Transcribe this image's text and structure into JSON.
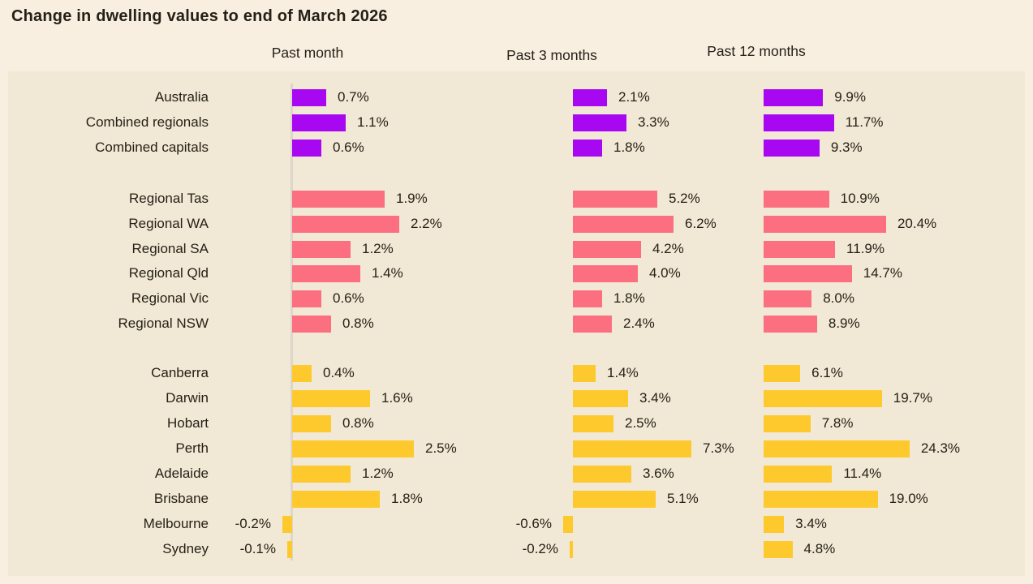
{
  "chart_data": {
    "type": "bar",
    "title": "Change in dwelling values to end of March 2026",
    "columns": [
      "Past month",
      "Past 3 months",
      "Past 12 months"
    ],
    "unit": "%",
    "layout": {
      "orientation": "horizontal",
      "legend": "none",
      "grid": "off",
      "value_labels": "at bar end"
    },
    "colors": {
      "national": "#A807F2",
      "regional": "#FC6F80",
      "capitals": "#FDC92D",
      "background": "#F8EFE1",
      "panel": "#F1E8D5",
      "axis_line": "#DDD6C9",
      "text": "#251F15"
    },
    "groups": [
      {
        "name": "national",
        "color": "#A807F2",
        "rows": [
          {
            "label": "Australia",
            "values": [
              0.7,
              2.1,
              9.9
            ],
            "display": [
              "0.7%",
              "2.1%",
              "9.9%"
            ]
          },
          {
            "label": "Combined regionals",
            "values": [
              1.1,
              3.3,
              11.7
            ],
            "display": [
              "1.1%",
              "3.3%",
              "11.7%"
            ]
          },
          {
            "label": "Combined capitals",
            "values": [
              0.6,
              1.8,
              9.3
            ],
            "display": [
              "0.6%",
              "1.8%",
              "9.3%"
            ]
          }
        ]
      },
      {
        "name": "regional",
        "color": "#FC6F80",
        "rows": [
          {
            "label": "Regional Tas",
            "values": [
              1.9,
              5.2,
              10.9
            ],
            "display": [
              "1.9%",
              "5.2%",
              "10.9%"
            ]
          },
          {
            "label": "Regional WA",
            "values": [
              2.2,
              6.2,
              20.4
            ],
            "display": [
              "2.2%",
              "6.2%",
              "20.4%"
            ]
          },
          {
            "label": "Regional SA",
            "values": [
              1.2,
              4.2,
              11.9
            ],
            "display": [
              "1.2%",
              "4.2%",
              "11.9%"
            ]
          },
          {
            "label": "Regional Qld",
            "values": [
              1.4,
              4.0,
              14.7
            ],
            "display": [
              "1.4%",
              "4.0%",
              "14.7%"
            ]
          },
          {
            "label": "Regional Vic",
            "values": [
              0.6,
              1.8,
              8.0
            ],
            "display": [
              "0.6%",
              "1.8%",
              "8.0%"
            ]
          },
          {
            "label": "Regional NSW",
            "values": [
              0.8,
              2.4,
              8.9
            ],
            "display": [
              "0.8%",
              "2.4%",
              "8.9%"
            ]
          }
        ]
      },
      {
        "name": "capitals",
        "color": "#FDC92D",
        "rows": [
          {
            "label": "Canberra",
            "values": [
              0.4,
              1.4,
              6.1
            ],
            "display": [
              "0.4%",
              "1.4%",
              "6.1%"
            ]
          },
          {
            "label": "Darwin",
            "values": [
              1.6,
              3.4,
              19.7
            ],
            "display": [
              "1.6%",
              "3.4%",
              "19.7%"
            ]
          },
          {
            "label": "Hobart",
            "values": [
              0.8,
              2.5,
              7.8
            ],
            "display": [
              "0.8%",
              "2.5%",
              "7.8%"
            ]
          },
          {
            "label": "Perth",
            "values": [
              2.5,
              7.3,
              24.3
            ],
            "display": [
              "2.5%",
              "7.3%",
              "24.3%"
            ]
          },
          {
            "label": "Adelaide",
            "values": [
              1.2,
              3.6,
              11.4
            ],
            "display": [
              "1.2%",
              "3.6%",
              "11.4%"
            ]
          },
          {
            "label": "Brisbane",
            "values": [
              1.8,
              5.1,
              19.0
            ],
            "display": [
              "1.8%",
              "5.1%",
              "19.0%"
            ]
          },
          {
            "label": "Melbourne",
            "values": [
              -0.2,
              -0.6,
              3.4
            ],
            "display": [
              "-0.2%",
              "-0.6%",
              "3.4%"
            ]
          },
          {
            "label": "Sydney",
            "values": [
              -0.1,
              -0.2,
              4.8
            ],
            "display": [
              "-0.1%",
              "-0.2%",
              "4.8%"
            ]
          }
        ]
      }
    ]
  }
}
